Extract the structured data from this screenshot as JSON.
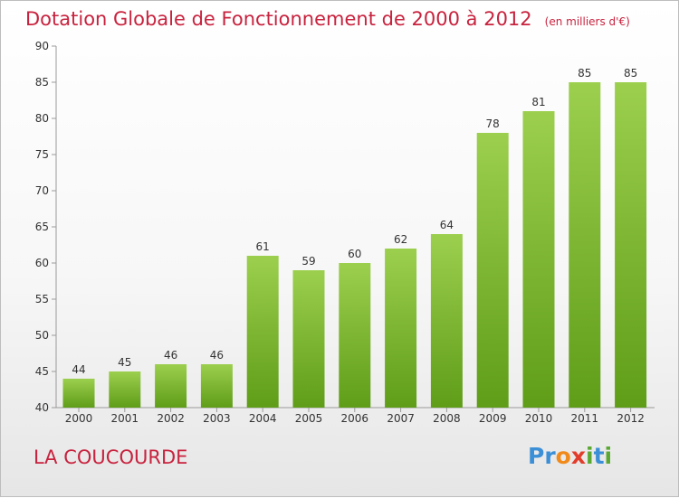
{
  "title": "Dotation Globale de Fonctionnement de 2000 à 2012",
  "title_unit": "(en milliers d'€)",
  "place": "LA COUCOURDE",
  "logo": {
    "letters": [
      "P",
      "r",
      "o",
      "x",
      "i",
      "t",
      "i"
    ],
    "colors": [
      "#3a8fd6",
      "#3a8fd6",
      "#f08a1a",
      "#e23c2a",
      "#5aa832",
      "#3a8fd6",
      "#5aa832"
    ]
  },
  "colors": {
    "title": "#c8223e",
    "bar_top": "#9ccf4e",
    "bar_bottom": "#5f9d18"
  },
  "chart_data": {
    "type": "bar",
    "categories": [
      "2000",
      "2001",
      "2002",
      "2003",
      "2004",
      "2005",
      "2006",
      "2007",
      "2008",
      "2009",
      "2010",
      "2011",
      "2012"
    ],
    "values": [
      44,
      45,
      46,
      46,
      61,
      59,
      60,
      62,
      64,
      78,
      81,
      85,
      85
    ],
    "ylim": [
      40,
      90
    ],
    "yticks": [
      40,
      45,
      50,
      55,
      60,
      65,
      70,
      75,
      80,
      85,
      90
    ],
    "grid": false,
    "title": "Dotation Globale de Fonctionnement de 2000 à 2012"
  }
}
